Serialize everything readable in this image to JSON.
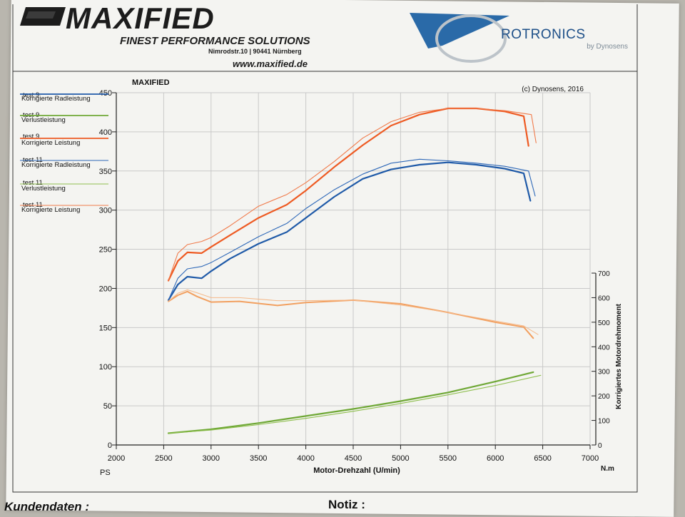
{
  "header": {
    "brand_logo": "MAXIFIED",
    "tagline": "FINEST PERFORMANCE SOLUTIONS",
    "address": "Nimrodstr.10 | 90441 Nürnberg",
    "website": "www.maxified.de",
    "partner_logo": "ROTRONICS",
    "partner_sub": "by Dynosens"
  },
  "chart_data": {
    "type": "line",
    "title": "MAXIFIED",
    "copyright": "(c) Dynosens, 2016",
    "xlabel": "Motor-Drehzahl (U/min)",
    "ylabel_left": "PS",
    "ylabel_right": "Korrigiertes Motordrehmoment",
    "unit_right": "N.m",
    "xlim": [
      2000,
      7000
    ],
    "ylim_left": [
      0,
      450
    ],
    "ylim_right": [
      0,
      700
    ],
    "x_ticks": [
      2000,
      2500,
      3000,
      3500,
      4000,
      4500,
      5000,
      5500,
      6000,
      6500,
      7000
    ],
    "y_ticks_left": [
      0,
      50,
      100,
      150,
      200,
      250,
      300,
      350,
      400,
      450
    ],
    "y_ticks_right": [
      0,
      100,
      200,
      300,
      400,
      500,
      600,
      700
    ],
    "grid": true,
    "series": [
      {
        "legend_run": "test 9",
        "name": "Korrigierte Radleistung",
        "color": "#1f5aa8",
        "axis": "left",
        "width": 2.2,
        "x": [
          2550,
          2650,
          2750,
          2900,
          3000,
          3200,
          3500,
          3800,
          4000,
          4300,
          4600,
          4900,
          5200,
          5500,
          5800,
          6100,
          6300,
          6370
        ],
        "y": [
          185,
          205,
          215,
          213,
          222,
          238,
          257,
          272,
          290,
          317,
          340,
          352,
          358,
          361,
          358,
          353,
          347,
          312
        ]
      },
      {
        "legend_run": "test 9",
        "name": "Verlustleistung",
        "color": "#6fa836",
        "axis": "left",
        "width": 2.2,
        "x": [
          2550,
          3000,
          3500,
          4000,
          4500,
          5000,
          5500,
          6000,
          6400
        ],
        "y": [
          15,
          20,
          28,
          37,
          46,
          56,
          67,
          81,
          93
        ]
      },
      {
        "legend_run": "test 9",
        "name": "Korrigierte Leistung",
        "color": "#ee5a22",
        "axis": "left",
        "width": 2.2,
        "x": [
          2550,
          2650,
          2750,
          2900,
          3000,
          3200,
          3500,
          3800,
          4000,
          4300,
          4600,
          4900,
          5200,
          5500,
          5800,
          6100,
          6300,
          6350
        ],
        "y": [
          210,
          235,
          246,
          245,
          253,
          268,
          290,
          307,
          325,
          355,
          383,
          408,
          422,
          430,
          430,
          426,
          420,
          382
        ]
      },
      {
        "legend_run": "test 11",
        "name": "Korrigierte Radleistung",
        "color": "#2e68b8",
        "axis": "left",
        "width": 1.1,
        "x": [
          2550,
          2650,
          2750,
          2900,
          3000,
          3200,
          3500,
          3800,
          4000,
          4300,
          4600,
          4900,
          5200,
          5500,
          5800,
          6100,
          6350,
          6420
        ],
        "y": [
          185,
          213,
          225,
          228,
          233,
          246,
          266,
          283,
          302,
          326,
          346,
          360,
          365,
          363,
          360,
          356,
          350,
          318
        ]
      },
      {
        "legend_run": "test 11",
        "name": "Verlustleistung",
        "color": "#8fbf4f",
        "axis": "left",
        "width": 1.1,
        "x": [
          2550,
          3000,
          3500,
          4000,
          4500,
          5000,
          5500,
          6000,
          6480
        ],
        "y": [
          15,
          19,
          26,
          34,
          43,
          53,
          64,
          76,
          89
        ]
      },
      {
        "legend_run": "test 11",
        "name": "Korrigierte Leistung",
        "color": "#f07a4a",
        "axis": "left",
        "width": 1.1,
        "x": [
          2550,
          2650,
          2750,
          2900,
          3000,
          3200,
          3500,
          3800,
          4000,
          4300,
          4600,
          4900,
          5200,
          5500,
          5800,
          6100,
          6380,
          6430
        ],
        "y": [
          210,
          245,
          256,
          260,
          265,
          280,
          305,
          320,
          335,
          362,
          392,
          413,
          425,
          430,
          430,
          427,
          422,
          386
        ]
      },
      {
        "name": "Korrigiertes Motordrehmoment (test 9)",
        "color": "#f2a060",
        "axis": "right",
        "width": 2.0,
        "x": [
          2550,
          2650,
          2750,
          2850,
          3000,
          3300,
          3700,
          4000,
          4500,
          5000,
          5500,
          6000,
          6300,
          6400
        ],
        "y": [
          585,
          610,
          625,
          605,
          582,
          585,
          568,
          580,
          590,
          575,
          540,
          500,
          480,
          435
        ]
      },
      {
        "name": "Korrigiertes Motordrehmoment (test 11)",
        "color": "#f5b98a",
        "axis": "right",
        "width": 1.0,
        "x": [
          2550,
          2650,
          2750,
          2850,
          3000,
          3300,
          3700,
          4000,
          4500,
          5000,
          5500,
          6000,
          6300,
          6450
        ],
        "y": [
          585,
          618,
          632,
          620,
          600,
          600,
          588,
          588,
          590,
          570,
          540,
          505,
          485,
          450
        ]
      }
    ]
  },
  "legend": [
    {
      "run": "test 9",
      "label": "Korrigierte Radleistung",
      "color": "#1f5aa8"
    },
    {
      "run": "test 9",
      "label": "Verlustleistung",
      "color": "#6fa836"
    },
    {
      "run": "test 9",
      "label": "Korrigierte Leistung",
      "color": "#ee5a22"
    },
    {
      "run": "test 11",
      "label": "Korrigierte Radleistung",
      "color": "#2e68b8"
    },
    {
      "run": "test 11",
      "label": "Verlustleistung",
      "color": "#8fbf4f"
    },
    {
      "run": "test 11",
      "label": "Korrigierte Leistung",
      "color": "#f07a4a"
    }
  ],
  "footer": {
    "customer_label": "Kundendaten :",
    "note_label": "Notiz :"
  }
}
